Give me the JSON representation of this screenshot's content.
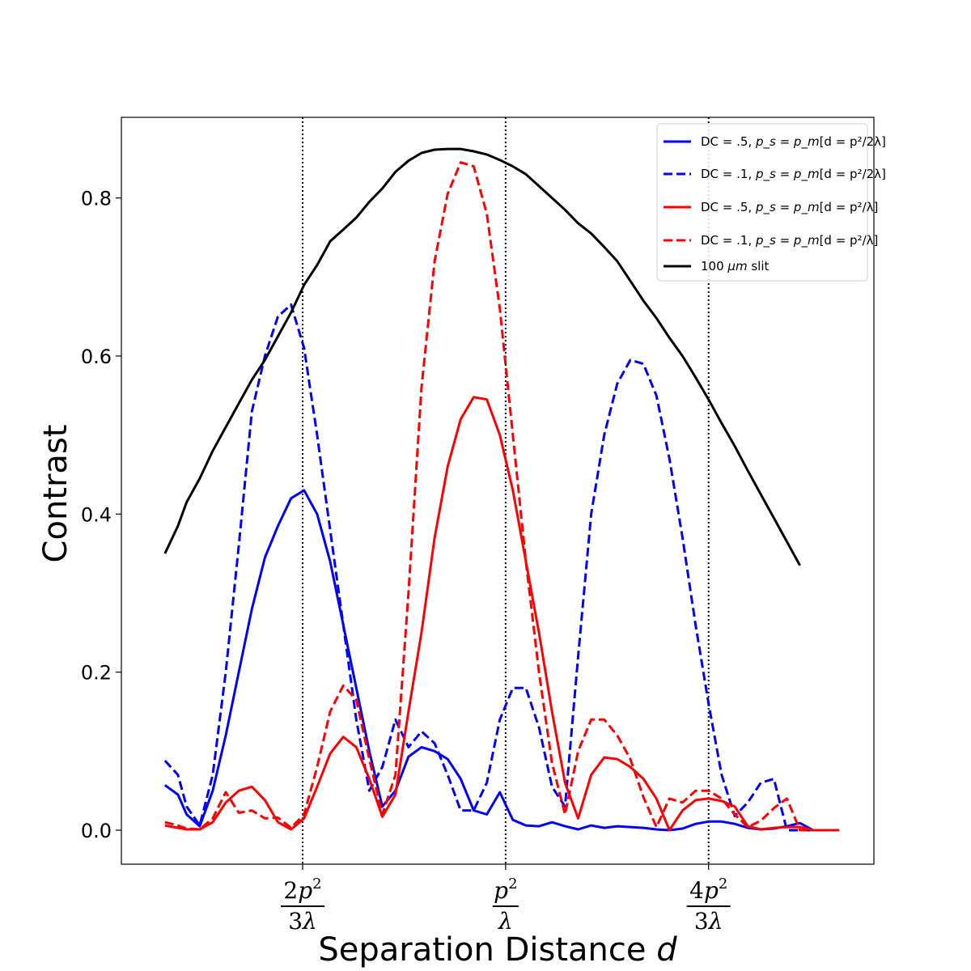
{
  "chart_data": {
    "type": "line",
    "title": "",
    "xlabel": "Separation Distance",
    "xlabel_var": "d",
    "ylabel": "Contrast",
    "ylim": [
      -0.043,
      0.902
    ],
    "xlim": [
      -0.15,
      1.58
    ],
    "yticks": [
      0.0,
      0.2,
      0.4,
      0.6,
      0.8
    ],
    "ytick_labels": [
      "0.0",
      "0.2",
      "0.4",
      "0.6",
      "0.8"
    ],
    "xticks": [
      {
        "x": 0.2667,
        "num": "2p",
        "sup": "2",
        "den": "3λ"
      },
      {
        "x": 0.7333,
        "num": "p",
        "sup": "2",
        "den": "λ"
      },
      {
        "x": 1.2,
        "num": "4p",
        "sup": "2",
        "den": "3λ"
      }
    ],
    "vlines": [
      0.2667,
      0.7333,
      1.2
    ],
    "grid": false,
    "legend_position": "top-right",
    "x": [
      -0.05,
      -0.02,
      0.0,
      0.03,
      0.06,
      0.09,
      0.12,
      0.15,
      0.18,
      0.21,
      0.24,
      0.27,
      0.3,
      0.33,
      0.36,
      0.39,
      0.42,
      0.45,
      0.48,
      0.51,
      0.54,
      0.57,
      0.6,
      0.63,
      0.66,
      0.69,
      0.72,
      0.75,
      0.78,
      0.81,
      0.84,
      0.87,
      0.9,
      0.93,
      0.96,
      0.99,
      1.02,
      1.05,
      1.08,
      1.11,
      1.14,
      1.17,
      1.2,
      1.23,
      1.26,
      1.29,
      1.32,
      1.35,
      1.38,
      1.41,
      1.44,
      1.47,
      1.5,
      1.53
    ],
    "series": [
      {
        "name": "DC = .5, ",
        "name_math": "p_s = p_m",
        "name_cond": "[d = p²/2λ]",
        "color": "#0000ff",
        "dash": "solid",
        "values": [
          0.057,
          0.045,
          0.02,
          0.005,
          0.05,
          0.12,
          0.2,
          0.28,
          0.345,
          0.385,
          0.42,
          0.43,
          0.4,
          0.34,
          0.26,
          0.18,
          0.1,
          0.03,
          0.05,
          0.093,
          0.105,
          0.1,
          0.09,
          0.065,
          0.025,
          0.02,
          0.048,
          0.013,
          0.006,
          0.005,
          0.01,
          0.005,
          0.001,
          0.006,
          0.003,
          0.005,
          0.004,
          0.003,
          0.001,
          0.0,
          0.002,
          0.008,
          0.011,
          0.011,
          0.008,
          0.003,
          0.001,
          0.002,
          0.005,
          0.009,
          0.0,
          0.0,
          0.0,
          0.0
        ]
      },
      {
        "name": "DC = .1, ",
        "name_math": "p_s = p_m",
        "name_cond": "[d = p²/2λ]",
        "color": "#0000ff",
        "dash": "dashed",
        "values": [
          0.088,
          0.07,
          0.03,
          0.006,
          0.07,
          0.2,
          0.36,
          0.53,
          0.6,
          0.65,
          0.665,
          0.61,
          0.5,
          0.38,
          0.26,
          0.14,
          0.05,
          0.08,
          0.14,
          0.105,
          0.125,
          0.11,
          0.07,
          0.025,
          0.025,
          0.06,
          0.14,
          0.18,
          0.18,
          0.13,
          0.055,
          0.03,
          0.22,
          0.4,
          0.5,
          0.565,
          0.595,
          0.59,
          0.55,
          0.47,
          0.37,
          0.26,
          0.16,
          0.07,
          0.018,
          0.035,
          0.06,
          0.065,
          0.0,
          0.0,
          0.0,
          0.0,
          0.0,
          0.0
        ]
      },
      {
        "name": "DC = .5, ",
        "name_math": "p_s = p_m",
        "name_cond": "[d = p²/λ]",
        "color": "#ff0000",
        "dash": "solid",
        "values": [
          0.006,
          0.003,
          0.001,
          0.001,
          0.01,
          0.035,
          0.05,
          0.055,
          0.038,
          0.01,
          0.001,
          0.015,
          0.055,
          0.097,
          0.118,
          0.105,
          0.065,
          0.017,
          0.045,
          0.15,
          0.25,
          0.37,
          0.46,
          0.52,
          0.548,
          0.545,
          0.5,
          0.43,
          0.34,
          0.25,
          0.15,
          0.06,
          0.015,
          0.07,
          0.092,
          0.09,
          0.08,
          0.065,
          0.04,
          0.0,
          0.025,
          0.038,
          0.04,
          0.037,
          0.03,
          0.005,
          0.001,
          0.003,
          0.004,
          0.004,
          0.0,
          0.0,
          0.0,
          0.0
        ]
      },
      {
        "name": "DC = .1, ",
        "name_math": "p_s = p_m",
        "name_cond": "[d = p²/λ]",
        "color": "#ff0000",
        "dash": "dashed",
        "values": [
          0.01,
          0.006,
          0.002,
          0.001,
          0.015,
          0.048,
          0.022,
          0.025,
          0.015,
          0.016,
          0.003,
          0.02,
          0.08,
          0.15,
          0.183,
          0.165,
          0.09,
          0.02,
          0.07,
          0.3,
          0.56,
          0.72,
          0.805,
          0.845,
          0.84,
          0.78,
          0.66,
          0.5,
          0.34,
          0.2,
          0.085,
          0.02,
          0.1,
          0.14,
          0.14,
          0.12,
          0.09,
          0.042,
          0.004,
          0.04,
          0.035,
          0.05,
          0.05,
          0.04,
          0.02,
          0.004,
          0.012,
          0.028,
          0.04,
          0.0,
          0.0,
          0.0,
          0.0,
          0.0
        ]
      },
      {
        "name": "100 ",
        "name_math": "μm",
        "name_cond": " slit",
        "color": "#000000",
        "dash": "solid",
        "values": [
          0.35,
          0.385,
          0.415,
          0.445,
          0.48,
          0.51,
          0.54,
          0.57,
          0.595,
          0.625,
          0.655,
          0.69,
          0.715,
          0.745,
          0.76,
          0.775,
          0.795,
          0.812,
          0.833,
          0.847,
          0.857,
          0.861,
          0.862,
          0.862,
          0.859,
          0.855,
          0.848,
          0.84,
          0.83,
          0.815,
          0.8,
          0.785,
          0.768,
          0.755,
          0.738,
          0.72,
          0.695,
          0.67,
          0.648,
          0.623,
          0.6,
          0.573,
          0.545,
          0.515,
          0.486,
          0.455,
          0.425,
          0.395,
          0.365,
          0.335,
          0.0,
          0.0,
          0.0,
          0.0
        ]
      }
    ]
  }
}
